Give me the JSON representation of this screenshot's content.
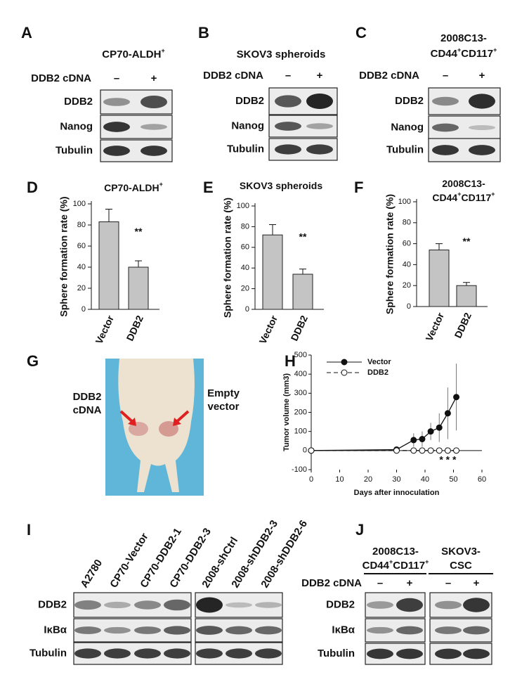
{
  "blots": {
    "A": {
      "panel": "A",
      "title": [
        [
          "CP70-ALDH",
          "+"
        ]
      ],
      "treatment": "DDB2 cDNA",
      "lanes": [
        "–",
        "+"
      ],
      "rows": [
        "DDB2",
        "Nanog",
        "Tubulin"
      ]
    },
    "B": {
      "panel": "B",
      "title": [
        [
          "SKOV3 spheroids"
        ]
      ],
      "treatment": "DDB2 cDNA",
      "lanes": [
        "–",
        "+"
      ],
      "rows": [
        "DDB2",
        "Nanog",
        "Tubulin"
      ]
    },
    "C": {
      "panel": "C",
      "title": [
        [
          "2008C13-"
        ],
        [
          "CD44",
          "+",
          "CD117",
          "+"
        ]
      ],
      "treatment": "DDB2 cDNA",
      "lanes": [
        "–",
        "+"
      ],
      "rows": [
        "DDB2",
        "Nanog",
        "Tubulin"
      ]
    },
    "I": {
      "panel": "I",
      "lanes": [
        "A2780",
        "CP70-Vector",
        "CP70-DDB2-1",
        "CP70-DDB2-3",
        "2008-shCtrl",
        "2008-shDDB2-3",
        "2008-shDDB2-6"
      ],
      "rows": [
        "DDB2",
        "IκBα",
        "Tubulin"
      ]
    },
    "J": {
      "panel": "J",
      "groups": [
        [
          [
            "2008C13-"
          ],
          [
            "CD44",
            "+",
            "CD117",
            "+"
          ]
        ],
        [
          [
            "SKOV3-"
          ],
          [
            "CSC"
          ]
        ]
      ],
      "treatment": "DDB2 cDNA",
      "lanes": [
        "–",
        "+",
        "–",
        "+"
      ],
      "rows": [
        "DDB2",
        "IκBα",
        "Tubulin"
      ]
    }
  },
  "photo": {
    "panel": "G",
    "left_label": [
      "DDB2",
      "cDNA"
    ],
    "right_label": [
      "Empty",
      "vector"
    ]
  },
  "chart_data": [
    {
      "type": "bar",
      "panel": "D",
      "title": [
        [
          "CP70-ALDH",
          "+"
        ]
      ],
      "y_label": "Sphere formation rate (%)",
      "categories": [
        "Vector",
        "DDB2"
      ],
      "values": [
        83,
        40
      ],
      "errors": [
        12,
        6
      ],
      "color": "#c4c4c4",
      "ylim": [
        0,
        100
      ],
      "yticks": [
        0,
        20,
        40,
        60,
        80,
        100
      ],
      "annotation": "**"
    },
    {
      "type": "bar",
      "panel": "E",
      "title": [
        [
          "SKOV3 spheroids"
        ]
      ],
      "y_label": "Sphere formation rate (%)",
      "categories": [
        "Vector",
        "DDB2"
      ],
      "values": [
        72,
        34
      ],
      "errors": [
        10,
        5
      ],
      "color": "#c4c4c4",
      "ylim": [
        0,
        100
      ],
      "yticks": [
        0,
        20,
        40,
        60,
        80,
        100
      ],
      "annotation": "**"
    },
    {
      "type": "bar",
      "panel": "F",
      "title": [
        [
          "2008C13-"
        ],
        [
          "CD44",
          "+",
          "CD117",
          "+"
        ]
      ],
      "y_label": "Sphere formation rate (%)",
      "categories": [
        "Vector",
        "DDB2"
      ],
      "values": [
        54,
        20
      ],
      "errors": [
        6,
        3
      ],
      "color": "#c4c4c4",
      "ylim": [
        0,
        100
      ],
      "yticks": [
        0,
        20,
        40,
        60,
        80,
        100
      ],
      "annotation": "**"
    },
    {
      "type": "line",
      "panel": "H",
      "x_label": "Days after innoculation",
      "y_label": "Tumor volume (mm3)",
      "x": [
        0,
        30,
        36,
        39,
        42,
        45,
        48,
        51
      ],
      "series": [
        {
          "name": "Vector",
          "color": "#111111",
          "marker": "filled",
          "values": [
            0,
            5,
            55,
            60,
            100,
            120,
            195,
            280
          ],
          "errors": [
            0,
            5,
            35,
            40,
            45,
            75,
            135,
            175
          ]
        },
        {
          "name": "DDB2",
          "color": "#111111",
          "marker": "open",
          "dashed": true,
          "values": [
            0,
            0,
            0,
            0,
            0,
            0,
            0,
            0
          ]
        }
      ],
      "xlim": [
        0,
        60
      ],
      "xticks": [
        0,
        10,
        20,
        30,
        40,
        50,
        60
      ],
      "ylim": [
        -100,
        500
      ],
      "yticks": [
        -100,
        0,
        100,
        200,
        300,
        400,
        500
      ],
      "legend": "upper-left",
      "annotation": "* * *"
    }
  ]
}
